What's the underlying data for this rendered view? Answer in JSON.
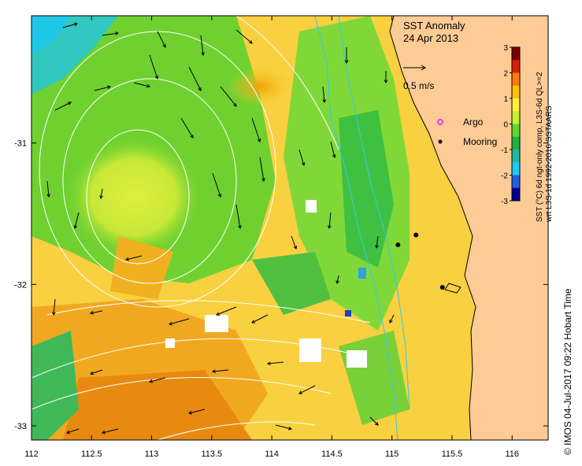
{
  "title": {
    "line1": "SST Anomaly",
    "line2": "24 Apr 2013"
  },
  "vector_scale_label": "0.5 m/s",
  "legend": {
    "argo_label": "Argo",
    "argo_color": "#e040e0",
    "mooring_label": "Mooring",
    "mooring_color": "#000000"
  },
  "colorbar": {
    "label_line1": "SST (°C) 6d ngt-only comp, L3S-6d QL>=2",
    "label_line2": "wrt L3S-1d 1992-2016 SSTAARS",
    "min": -3,
    "max": 3,
    "ticks": [
      "3",
      "2",
      "1",
      "0",
      "-1",
      "-2",
      "-3"
    ],
    "colors": [
      "#7a0000",
      "#d62000",
      "#ff7a00",
      "#ffc000",
      "#ffee40",
      "#c8ee30",
      "#60d830",
      "#20b040",
      "#20b8a0",
      "#20c8f0",
      "#2060e0",
      "#000090"
    ]
  },
  "axes": {
    "x_ticks": [
      "112",
      "112.5",
      "113",
      "113.5",
      "114",
      "114.5",
      "115",
      "115.5",
      "116"
    ],
    "y_ticks": [
      "-31",
      "-32",
      "-33"
    ],
    "lon_range": [
      112,
      116.3
    ],
    "lat_range": [
      -30.1,
      -33.1
    ]
  },
  "moorings": [
    {
      "lon": 115.05,
      "lat": -31.72
    },
    {
      "lon": 115.2,
      "lat": -31.65
    },
    {
      "lon": 115.42,
      "lat": -32.02
    }
  ],
  "land_color": "#fccb96",
  "credit": "© IMOS 04-Jul-2017 09:22 Hobart Time"
}
